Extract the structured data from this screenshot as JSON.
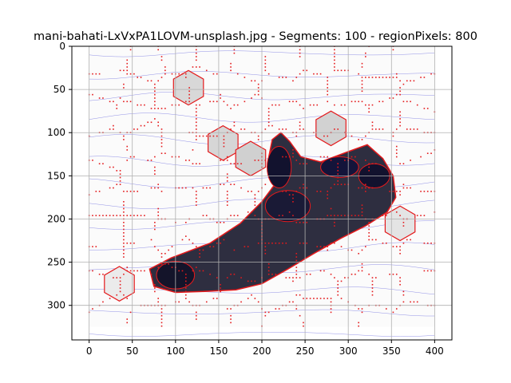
{
  "chart_data": {
    "type": "heatmap",
    "title": "mani-bahati-LxVxPA1LOVM-unsplash.jpg - Segments: 100 - regionPixels: 800",
    "xlabel": "",
    "ylabel": "",
    "xlim": [
      -20,
      420
    ],
    "ylim": [
      340,
      0
    ],
    "x_ticks": [
      0,
      50,
      100,
      150,
      200,
      250,
      300,
      350,
      400
    ],
    "y_ticks": [
      0,
      50,
      100,
      150,
      200,
      250,
      300
    ],
    "grid": true,
    "image_extent": {
      "width": 400,
      "height": 325
    },
    "boundary_color": "#e41a1c",
    "contour_color": "#3b3bd6",
    "shoe_outline": [
      [
        70,
        258
      ],
      [
        95,
        245
      ],
      [
        140,
        228
      ],
      [
        175,
        205
      ],
      [
        200,
        180
      ],
      [
        215,
        160
      ],
      [
        208,
        128
      ],
      [
        212,
        108
      ],
      [
        222,
        100
      ],
      [
        232,
        110
      ],
      [
        245,
        128
      ],
      [
        268,
        134
      ],
      [
        300,
        122
      ],
      [
        322,
        114
      ],
      [
        340,
        130
      ],
      [
        352,
        150
      ],
      [
        355,
        175
      ],
      [
        345,
        192
      ],
      [
        320,
        208
      ],
      [
        292,
        222
      ],
      [
        260,
        240
      ],
      [
        230,
        258
      ],
      [
        200,
        275
      ],
      [
        170,
        282
      ],
      [
        130,
        284
      ],
      [
        100,
        285
      ],
      [
        75,
        278
      ]
    ],
    "segments": [
      {
        "label": "1",
        "cx": 115,
        "cy": 48,
        "shade": "#d8d8d8"
      },
      {
        "label": "2",
        "cx": 280,
        "cy": 95,
        "shade": "#d2d2d2"
      },
      {
        "label": "3",
        "cx": 155,
        "cy": 112,
        "shade": "#d6d6d6"
      },
      {
        "label": "4",
        "cx": 187,
        "cy": 130,
        "shade": "#d0d0d0"
      },
      {
        "label": "5",
        "cx": 360,
        "cy": 205,
        "shade": "#e4e4e4"
      },
      {
        "label": "6",
        "cx": 255,
        "cy": 195,
        "shade": "#9a9a9a"
      },
      {
        "label": "7",
        "cx": 300,
        "cy": 178,
        "shade": "#8e8e8e"
      },
      {
        "label": "8",
        "cx": 175,
        "cy": 240,
        "shade": "#9c9c9c"
      },
      {
        "label": "9",
        "cx": 35,
        "cy": 275,
        "shade": "#ebebeb"
      }
    ]
  }
}
